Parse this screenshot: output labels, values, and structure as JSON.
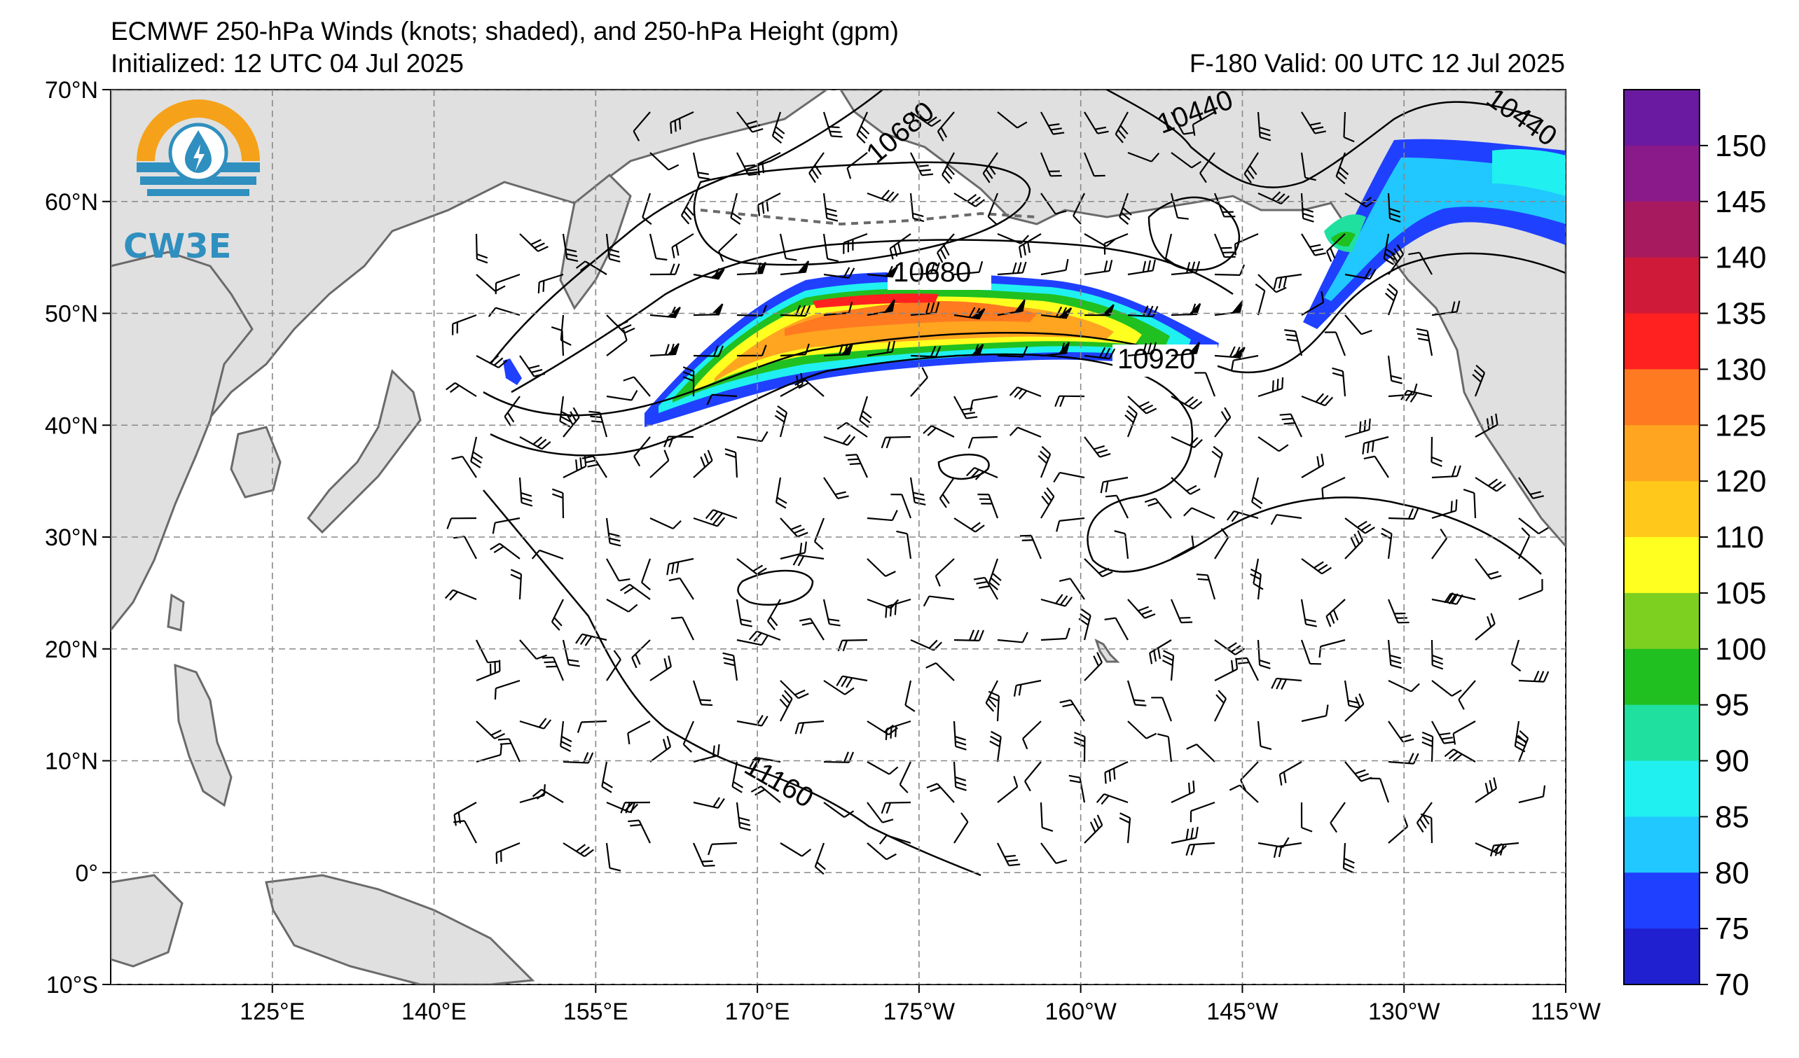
{
  "header": {
    "title": "ECMWF 250-hPa Winds (knots; shaded), and 250-hPa Height (gpm)",
    "initialized": "Initialized: 12 UTC 04 Jul 2025",
    "valid": "F-180  Valid: 00 UTC 12 Jul 2025"
  },
  "logo": {
    "text": "CW3E",
    "icon": "water-drop-lightning-sun-icon"
  },
  "axes": {
    "lat_labels": [
      "70°N",
      "60°N",
      "50°N",
      "40°N",
      "30°N",
      "20°N",
      "10°N",
      "0°",
      "10°S"
    ],
    "lat_values": [
      70,
      60,
      50,
      40,
      30,
      20,
      10,
      0,
      -10
    ],
    "lon_labels": [
      "125°E",
      "140°E",
      "155°E",
      "170°E",
      "175°W",
      "160°W",
      "145°W",
      "130°W",
      "115°W"
    ],
    "lon_values": [
      125,
      140,
      155,
      170,
      185,
      200,
      215,
      230,
      245
    ],
    "lon_range": [
      110,
      245
    ],
    "lat_range": [
      -10,
      70
    ],
    "grid": true
  },
  "contour_labels": [
    "10680",
    "10440",
    "10440",
    "10680",
    "10920",
    "11160"
  ],
  "colorbar": {
    "labels": [
      "150",
      "145",
      "140",
      "135",
      "130",
      "125",
      "120",
      "110",
      "105",
      "100",
      "95",
      "90",
      "85",
      "80",
      "75",
      "70"
    ],
    "colors": [
      "#6a1aa0",
      "#8a1a8a",
      "#a81a60",
      "#d01a3a",
      "#ff2020",
      "#ff7a20",
      "#ffa520",
      "#ffc81a",
      "#ffff20",
      "#7ed020",
      "#20c020",
      "#20e0a0",
      "#20f0f0",
      "#20c8ff",
      "#2040ff",
      "#2020d0"
    ]
  },
  "colors": {
    "land": "#e0e0e0",
    "coast": "#6a6a6a",
    "grid": "#888888",
    "jet_core": "#ff7a20"
  }
}
